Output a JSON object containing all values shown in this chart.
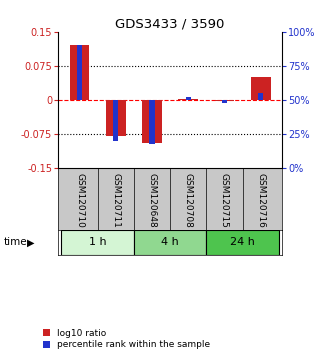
{
  "title": "GDS3433 / 3590",
  "samples": [
    "GSM120710",
    "GSM120711",
    "GSM120648",
    "GSM120708",
    "GSM120715",
    "GSM120716"
  ],
  "log10_ratio": [
    0.12,
    -0.08,
    -0.095,
    0.003,
    -0.003,
    0.05
  ],
  "percentile_rank_pct": [
    90,
    20,
    18,
    52,
    48,
    55
  ],
  "time_groups": [
    {
      "label": "1 h",
      "start": 0,
      "end": 2,
      "color": "#d4f5d4"
    },
    {
      "label": "4 h",
      "start": 2,
      "end": 4,
      "color": "#90d890"
    },
    {
      "label": "24 h",
      "start": 4,
      "end": 6,
      "color": "#4ec44e"
    }
  ],
  "ylim": [
    -0.15,
    0.15
  ],
  "yticks_left": [
    -0.15,
    -0.075,
    0,
    0.075,
    0.15
  ],
  "ytick_labels_left": [
    "-0.15",
    "-0.075",
    "0",
    "0.075",
    "0.15"
  ],
  "yticks_right_pct": [
    0,
    25,
    50,
    75,
    100
  ],
  "red_bar_width": 0.55,
  "blue_bar_width": 0.15,
  "red_color": "#cc2222",
  "blue_color": "#2233cc",
  "bg_color": "#ffffff",
  "plot_bg": "#ffffff",
  "legend_red": "log10 ratio",
  "legend_blue": "percentile rank within the sample",
  "time_label": "time",
  "xlabel_bg": "#c8c8c8"
}
